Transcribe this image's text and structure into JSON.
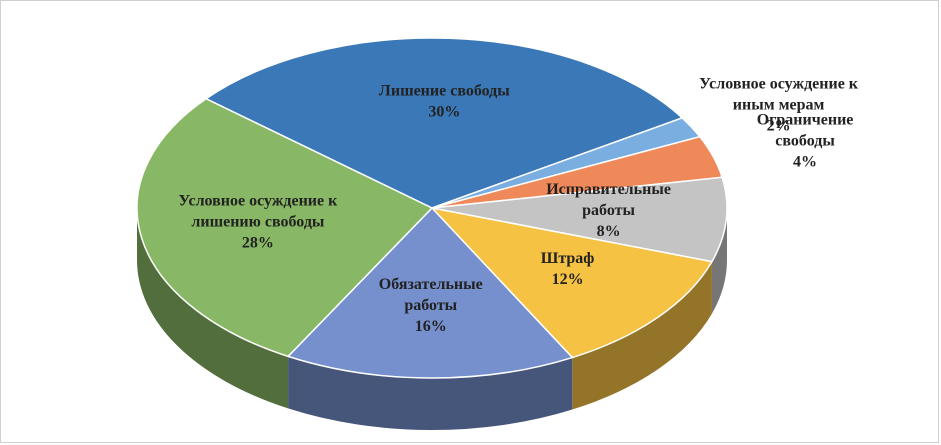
{
  "chart_data": {
    "type": "pie3d",
    "categories": [
      "Лишение свободы",
      "Условное осуждение к иным мерам",
      "Ограничение свободы",
      "Исправительные работы",
      "Штраф",
      "Обязательные работы",
      "Условное осуждение к лишению свободы"
    ],
    "values": [
      30,
      2,
      4,
      8,
      12,
      16,
      28
    ],
    "value_labels": [
      "30%",
      "2%",
      "4%",
      "8%",
      "12%",
      "16%",
      "28%"
    ],
    "colors": [
      "#3b78b8",
      "#7aaee0",
      "#f0895a",
      "#c4c4c4",
      "#f5c243",
      "#7590cc",
      "#88b865"
    ]
  }
}
